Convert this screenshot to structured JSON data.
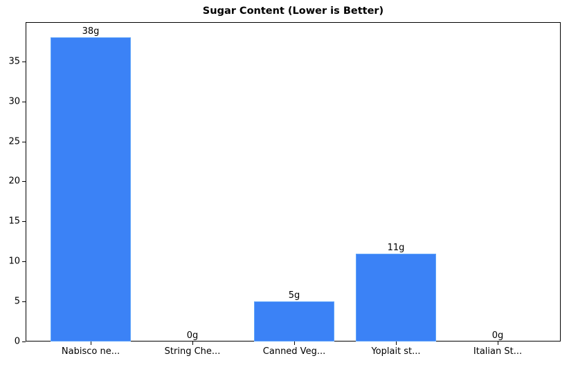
{
  "chart_data": {
    "type": "bar",
    "title": "Sugar Content (Lower is Better)",
    "xlabel": "",
    "ylabel": "",
    "categories": [
      "Nabisco ne...",
      "String Che...",
      "Canned Veg...",
      "Yoplait st...",
      "Italian St..."
    ],
    "values": [
      38,
      0,
      5,
      11,
      0
    ],
    "value_labels": [
      "38g",
      "0g",
      "5g",
      "11g",
      "0g"
    ],
    "ylim": [
      0,
      39.9
    ],
    "yticks": [
      0,
      5,
      10,
      15,
      20,
      25,
      30,
      35
    ],
    "grid": false,
    "bar_color": "#3b82f6"
  }
}
